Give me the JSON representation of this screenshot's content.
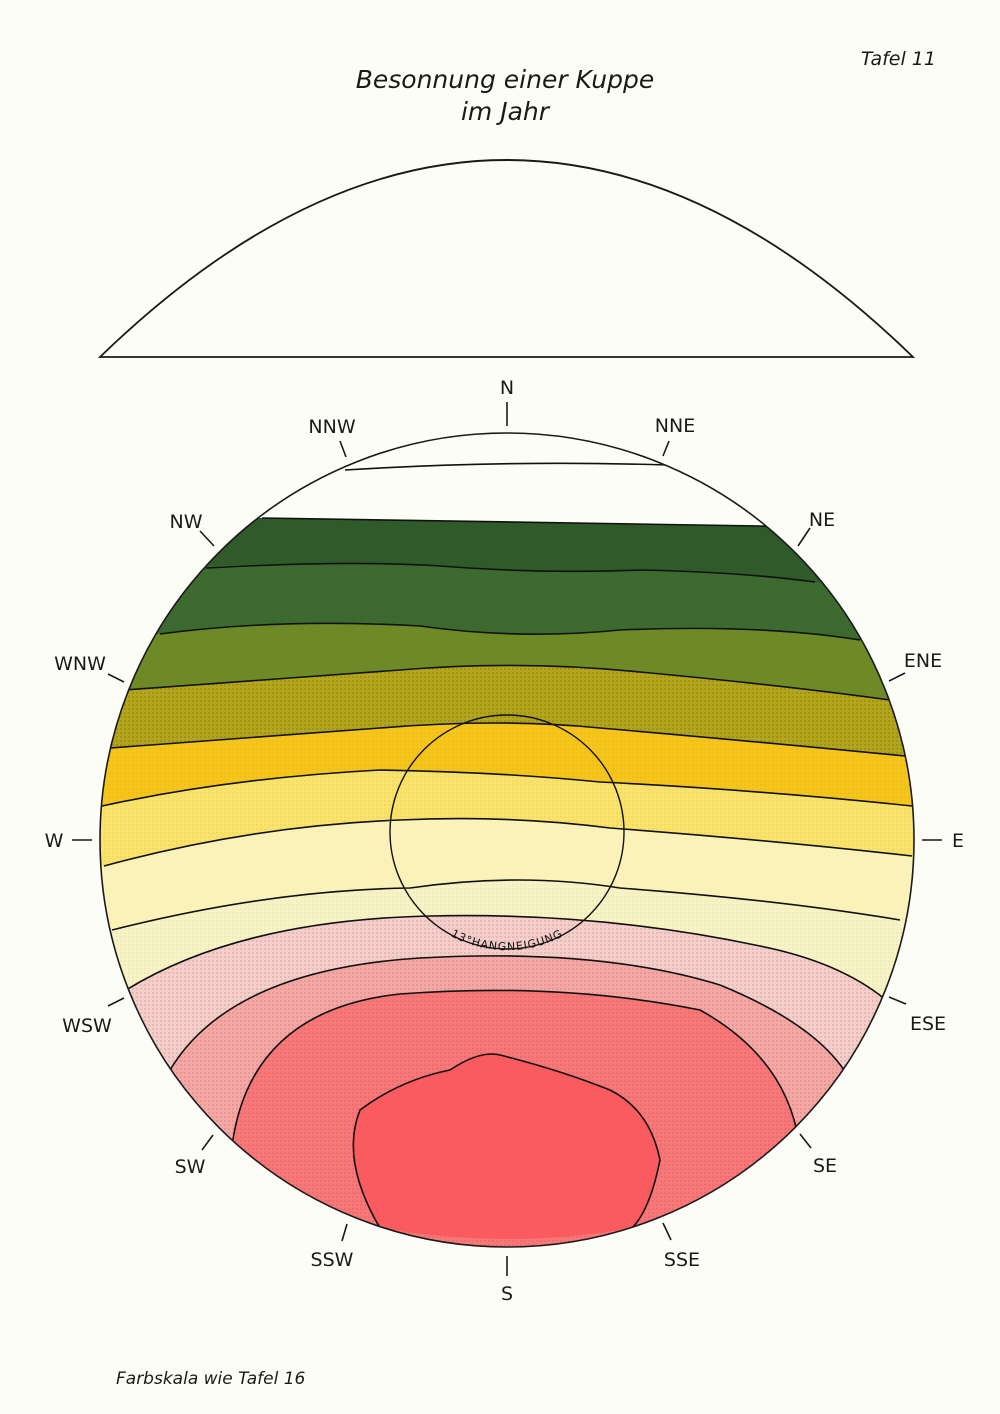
{
  "title_line1": "Besonnung einer Kuppe",
  "title_line2": "im Jahr",
  "plate_number": "Tafel 11",
  "footer": "Farbskala wie Tafel 16",
  "slope_label": "13°HANGNEIGUNG",
  "compass": {
    "N": "N",
    "NNE": "NNE",
    "NE": "NE",
    "ENE": "ENE",
    "E": "E",
    "ESE": "ESE",
    "SE": "SE",
    "SSE": "SSE",
    "S": "S",
    "SSW": "SSW",
    "SW": "SW",
    "WSW": "WSW",
    "W": "W",
    "WNW": "WNW",
    "NW": "NW",
    "NNW": "NNW"
  },
  "colors": {
    "background": "#fdfdf8",
    "dark_green": "#2f5a2a",
    "green": "#3d6b2f",
    "olive_green": "#6e8a26",
    "olive_yellow": "#b3a51c",
    "yellow": "#f6c51c",
    "light_yellow": "#f9e36a",
    "pale_yellow": "#faf2b8",
    "pale_pink": "#f3cfcb",
    "light_red": "#f2a8a5",
    "red": "#f77879",
    "strong_red": "#f95b5e"
  }
}
